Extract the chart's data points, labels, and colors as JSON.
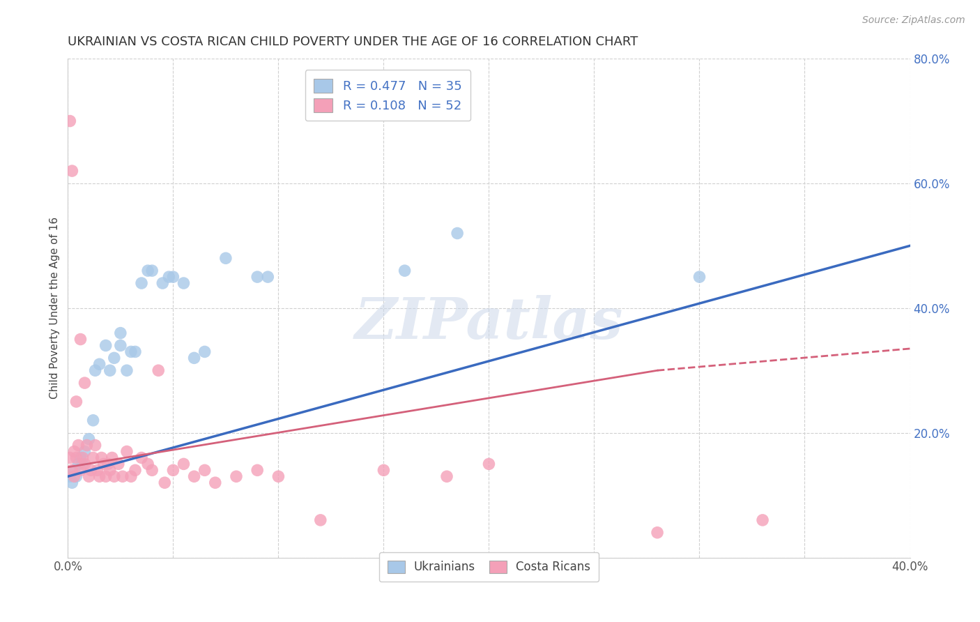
{
  "title": "UKRAINIAN VS COSTA RICAN CHILD POVERTY UNDER THE AGE OF 16 CORRELATION CHART",
  "source": "Source: ZipAtlas.com",
  "ylabel": "Child Poverty Under the Age of 16",
  "xlim": [
    0.0,
    0.4
  ],
  "ylim": [
    0.0,
    0.8
  ],
  "xticks": [
    0.0,
    0.05,
    0.1,
    0.15,
    0.2,
    0.25,
    0.3,
    0.35,
    0.4
  ],
  "yticks": [
    0.0,
    0.2,
    0.4,
    0.6,
    0.8
  ],
  "background_color": "#ffffff",
  "grid_color": "#d0d0d0",
  "watermark": "ZIPatlas",
  "blue_line": {
    "x0": 0.0,
    "y0": 0.13,
    "x1": 0.4,
    "y1": 0.5
  },
  "pink_solid_line": {
    "x0": 0.0,
    "y0": 0.145,
    "x1": 0.28,
    "y1": 0.3
  },
  "pink_dashed_line": {
    "x0": 0.28,
    "y0": 0.3,
    "x1": 0.4,
    "y1": 0.335
  },
  "series": [
    {
      "name": "Ukrainians",
      "R": 0.477,
      "N": 35,
      "marker_color": "#a8c8e8",
      "line_color": "#3a6abf",
      "line_style": "solid",
      "x": [
        0.001,
        0.002,
        0.003,
        0.004,
        0.005,
        0.006,
        0.007,
        0.008,
        0.01,
        0.012,
        0.013,
        0.015,
        0.018,
        0.02,
        0.022,
        0.025,
        0.025,
        0.028,
        0.03,
        0.032,
        0.035,
        0.038,
        0.04,
        0.045,
        0.048,
        0.05,
        0.055,
        0.06,
        0.065,
        0.075,
        0.09,
        0.095,
        0.16,
        0.185,
        0.3
      ],
      "y": [
        0.13,
        0.12,
        0.14,
        0.13,
        0.15,
        0.16,
        0.15,
        0.17,
        0.19,
        0.22,
        0.3,
        0.31,
        0.34,
        0.3,
        0.32,
        0.34,
        0.36,
        0.3,
        0.33,
        0.33,
        0.44,
        0.46,
        0.46,
        0.44,
        0.45,
        0.45,
        0.44,
        0.32,
        0.33,
        0.48,
        0.45,
        0.45,
        0.46,
        0.52,
        0.45
      ]
    },
    {
      "name": "Costa Ricans",
      "R": 0.108,
      "N": 52,
      "marker_color": "#f4a0b8",
      "line_color": "#d4607a",
      "line_style": "dashed",
      "x": [
        0.001,
        0.001,
        0.002,
        0.002,
        0.003,
        0.003,
        0.004,
        0.004,
        0.005,
        0.006,
        0.006,
        0.007,
        0.008,
        0.008,
        0.009,
        0.01,
        0.011,
        0.012,
        0.013,
        0.014,
        0.015,
        0.016,
        0.017,
        0.018,
        0.019,
        0.02,
        0.021,
        0.022,
        0.024,
        0.026,
        0.028,
        0.03,
        0.032,
        0.035,
        0.038,
        0.04,
        0.043,
        0.046,
        0.05,
        0.055,
        0.06,
        0.065,
        0.07,
        0.08,
        0.09,
        0.1,
        0.12,
        0.15,
        0.18,
        0.2,
        0.28,
        0.33
      ],
      "y": [
        0.16,
        0.7,
        0.14,
        0.62,
        0.17,
        0.13,
        0.16,
        0.25,
        0.18,
        0.35,
        0.14,
        0.16,
        0.28,
        0.15,
        0.18,
        0.13,
        0.14,
        0.16,
        0.18,
        0.14,
        0.13,
        0.16,
        0.15,
        0.13,
        0.15,
        0.14,
        0.16,
        0.13,
        0.15,
        0.13,
        0.17,
        0.13,
        0.14,
        0.16,
        0.15,
        0.14,
        0.3,
        0.12,
        0.14,
        0.15,
        0.13,
        0.14,
        0.12,
        0.13,
        0.14,
        0.13,
        0.06,
        0.14,
        0.13,
        0.15,
        0.04,
        0.06
      ]
    }
  ],
  "title_fontsize": 13,
  "axis_label_fontsize": 11,
  "tick_fontsize": 12,
  "source_fontsize": 10
}
